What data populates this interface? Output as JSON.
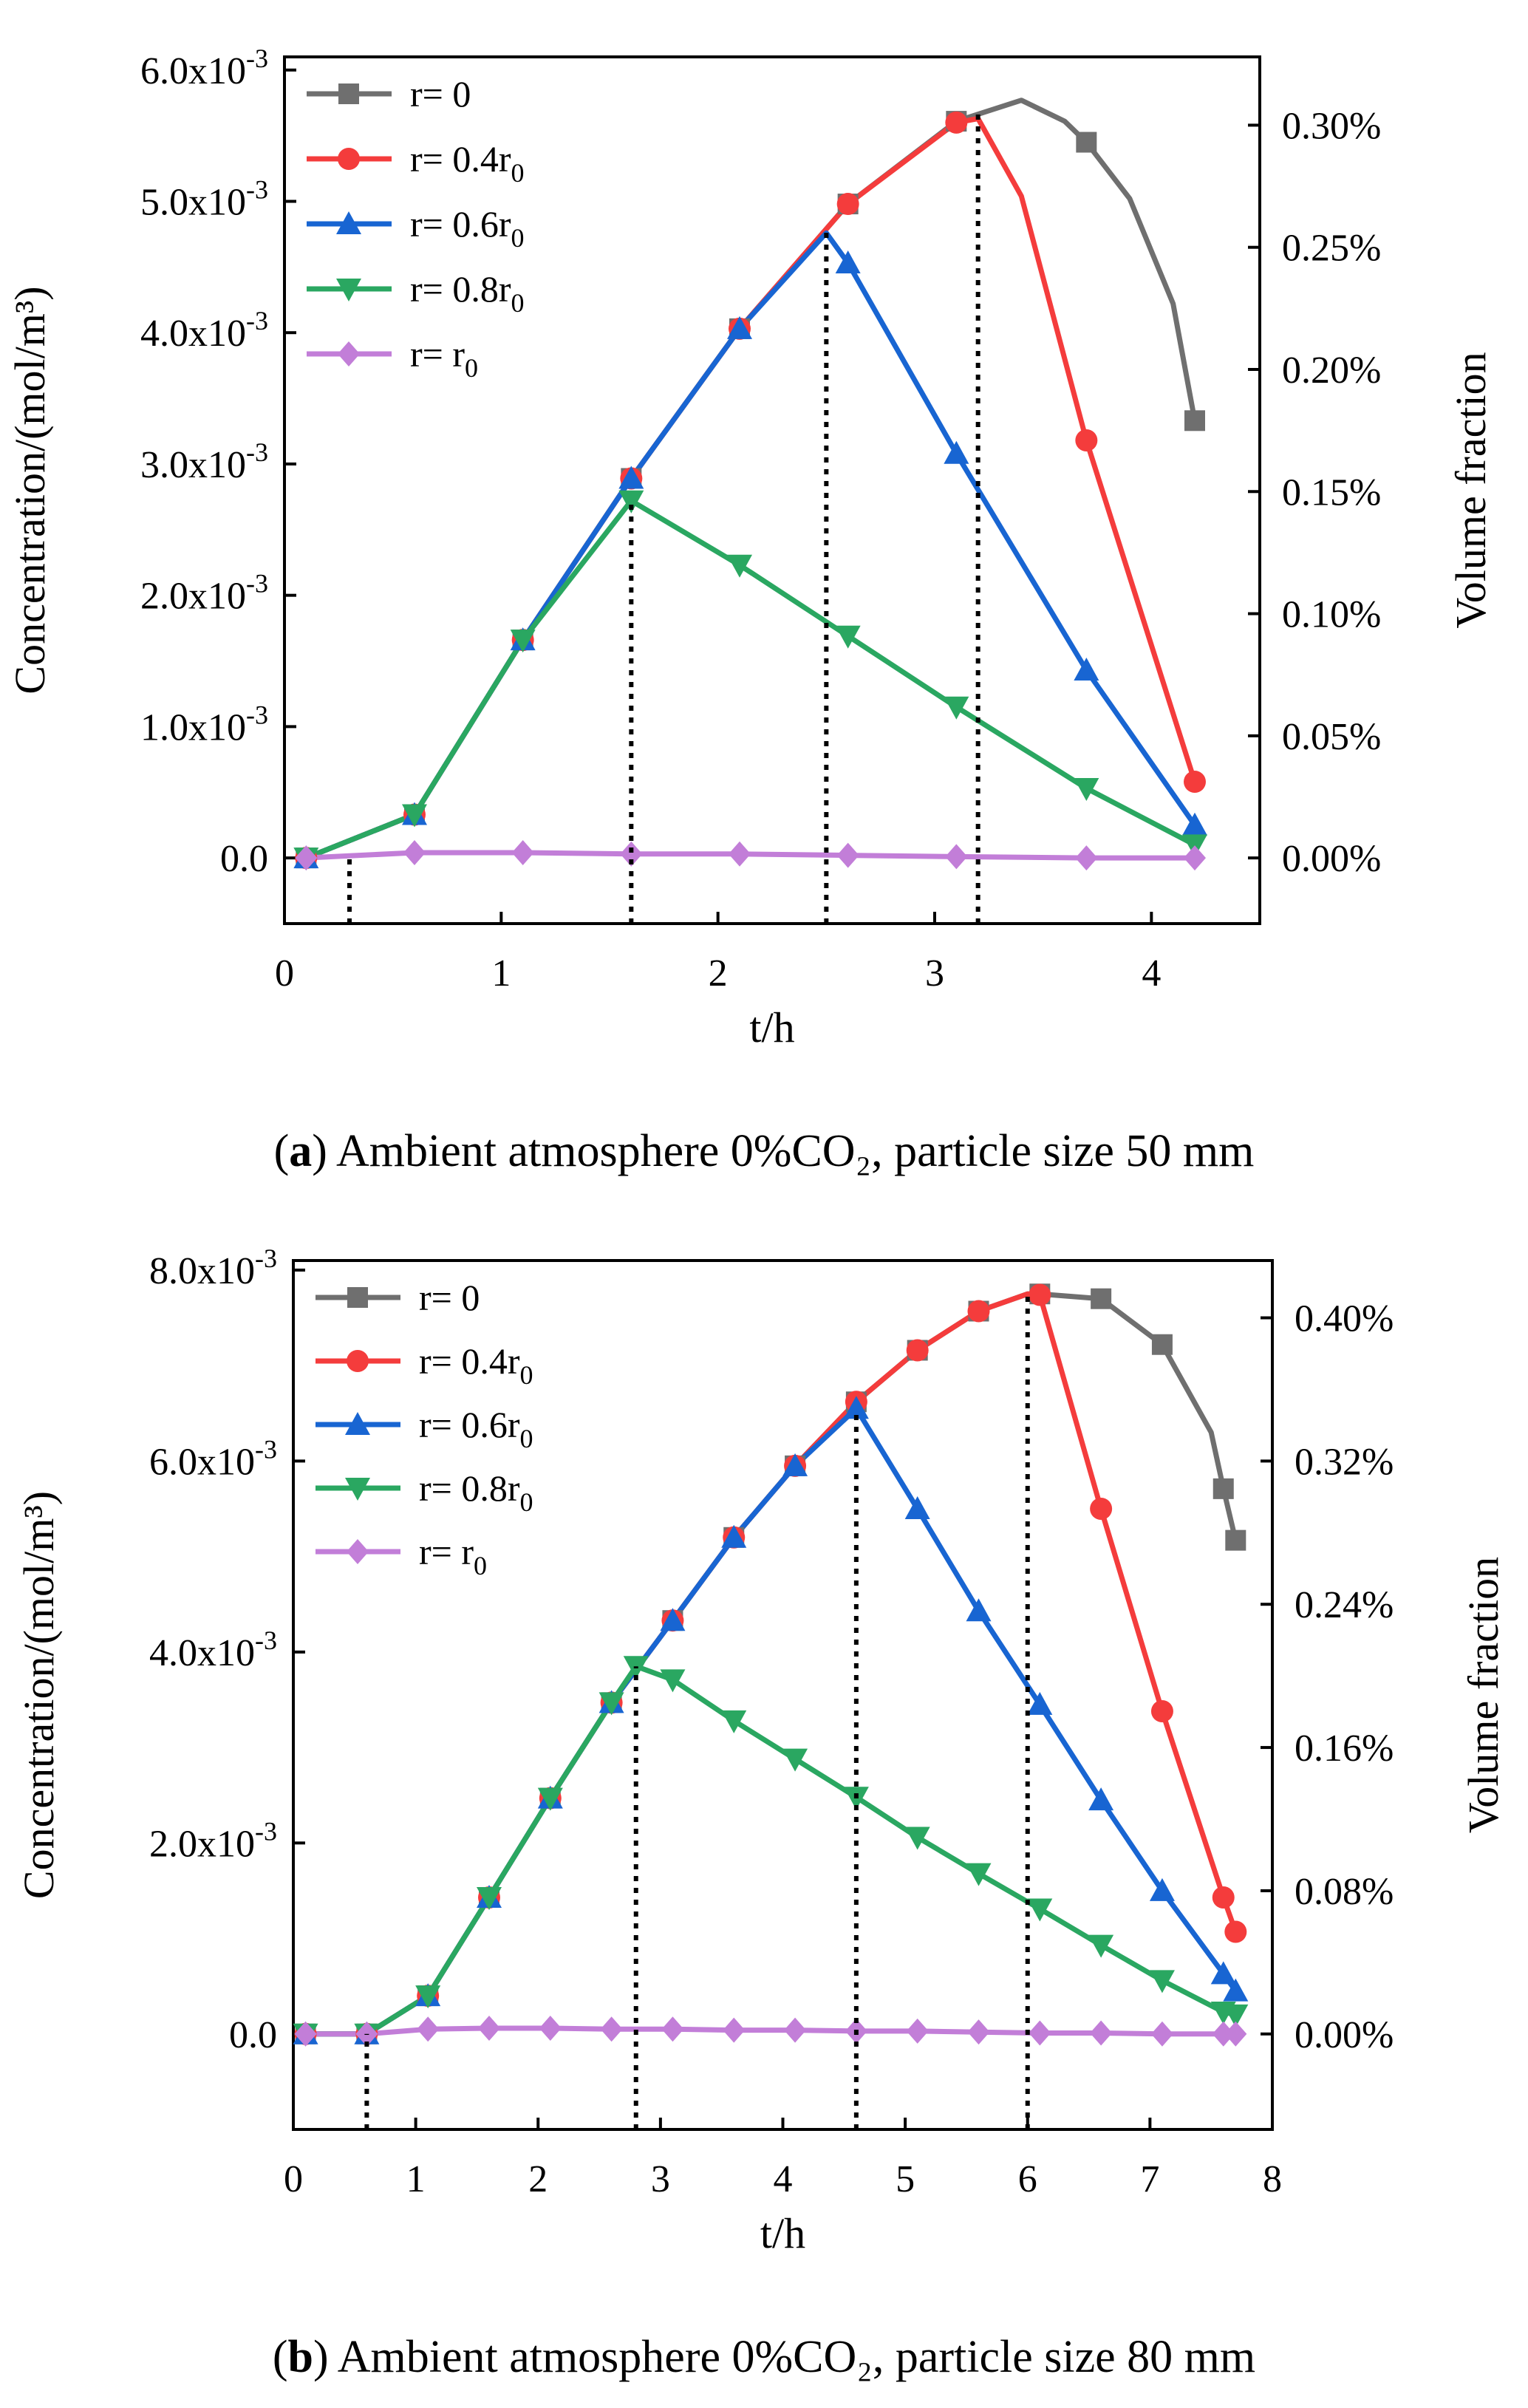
{
  "chart_data": [
    {
      "type": "line",
      "panel_label": "a",
      "caption": "Ambient atmosphere 0%CO₂, particle size 50 mm",
      "xlabel": "t/h",
      "ylabel": "Concentration/(mol/m³)",
      "ylabel_right": "Volume fraction",
      "xlim": [
        0,
        4.5
      ],
      "ylim": [
        -0.0005,
        0.0061
      ],
      "xticks": [
        0,
        1,
        2,
        3,
        4
      ],
      "xtick_labels": [
        "0",
        "1",
        "2",
        "3",
        "4"
      ],
      "yticks": [
        0,
        0.001,
        0.002,
        0.003,
        0.004,
        0.005,
        0.006
      ],
      "ytick_labels": [
        "0.0",
        "1.0x10-3",
        "2.0x10-3",
        "3.0x10-3",
        "4.0x10-3",
        "5.0x10-3",
        "6.0x10-3"
      ],
      "y2ticks": [
        0,
        0.00093,
        0.00186,
        0.00279,
        0.00372,
        0.00465,
        0.00558
      ],
      "y2tick_labels": [
        "0.00%",
        "0.05%",
        "0.10%",
        "0.15%",
        "0.20%",
        "0.25%",
        "0.30%"
      ],
      "vlines": [
        {
          "x": 0.3,
          "y": 0.0
        },
        {
          "x": 1.6,
          "y": 0.00272
        },
        {
          "x": 2.5,
          "y": 0.00477
        },
        {
          "x": 3.2,
          "y": 0.00569
        }
      ],
      "legend_position": "top-left",
      "series": [
        {
          "name": "r= 0",
          "sub": "",
          "color": "#6f6f6f",
          "marker": "square",
          "x": [
            0.1,
            0.6,
            1.1,
            1.6,
            2.1,
            2.6,
            3.1,
            3.4,
            3.6,
            3.7,
            3.9,
            4.1,
            4.2
          ],
          "y": [
            0.0,
            0.00033,
            0.00166,
            0.00289,
            0.00403,
            0.00498,
            0.00561,
            0.00577,
            0.00561,
            0.00545,
            0.00502,
            0.00422,
            0.00333
          ],
          "marker_idx": [
            0,
            1,
            2,
            3,
            4,
            5,
            6,
            9,
            12
          ]
        },
        {
          "name": "r= 0.4r",
          "sub": "0",
          "color": "#f43c3c",
          "marker": "circle",
          "x": [
            0.1,
            0.6,
            1.1,
            1.6,
            2.1,
            2.6,
            3.1,
            3.2,
            3.4,
            3.7,
            4.2
          ],
          "y": [
            0.0,
            0.00033,
            0.00166,
            0.00289,
            0.00403,
            0.00498,
            0.0056,
            0.00563,
            0.00504,
            0.00318,
            0.00058
          ],
          "marker_idx": [
            0,
            1,
            2,
            3,
            4,
            5,
            6,
            9,
            10
          ]
        },
        {
          "name": "r= 0.6r",
          "sub": "0",
          "color": "#1865d2",
          "marker": "triangle-up",
          "x": [
            0.1,
            0.6,
            1.1,
            1.6,
            2.1,
            2.5,
            2.6,
            3.1,
            3.7,
            4.2
          ],
          "y": [
            0.0,
            0.00033,
            0.00166,
            0.00289,
            0.00403,
            0.00476,
            0.00453,
            0.00308,
            0.00143,
            0.00025
          ],
          "marker_idx": [
            0,
            1,
            2,
            3,
            4,
            6,
            7,
            8,
            9
          ]
        },
        {
          "name": "r= 0.8r",
          "sub": "0",
          "color": "#2aa761",
          "marker": "triangle-down",
          "x": [
            0.1,
            0.6,
            1.1,
            1.6,
            2.1,
            2.6,
            3.1,
            3.7,
            4.2
          ],
          "y": [
            0.0,
            0.00033,
            0.00166,
            0.00272,
            0.00223,
            0.00169,
            0.00115,
            0.00053,
            0.0001
          ],
          "marker_idx": [
            0,
            1,
            2,
            3,
            4,
            5,
            6,
            7,
            8
          ]
        },
        {
          "name": "r= r",
          "sub": "0",
          "color": "#c27ed8",
          "marker": "diamond",
          "x": [
            0.1,
            0.6,
            1.1,
            1.6,
            2.1,
            2.6,
            3.1,
            3.7,
            4.2
          ],
          "y": [
            0.0,
            4e-05,
            4e-05,
            3e-05,
            3e-05,
            2e-05,
            1e-05,
            0.0,
            0.0
          ],
          "marker_idx": [
            0,
            1,
            2,
            3,
            4,
            5,
            6,
            7,
            8
          ]
        }
      ]
    },
    {
      "type": "line",
      "panel_label": "b",
      "caption": "Ambient atmosphere 0%CO₂, particle size 80 mm",
      "xlabel": "t/h",
      "ylabel": "Concentration/(mol/m³)",
      "ylabel_right": "Volume fraction",
      "xlim": [
        0,
        8
      ],
      "ylim": [
        -0.001,
        0.0081
      ],
      "xticks": [
        0,
        1,
        2,
        3,
        4,
        5,
        6,
        7,
        8
      ],
      "xtick_labels": [
        "0",
        "1",
        "2",
        "3",
        "4",
        "5",
        "6",
        "7",
        "8"
      ],
      "yticks": [
        0,
        0.002,
        0.004,
        0.006,
        0.008
      ],
      "ytick_labels": [
        "0.0",
        "2.0x10-3",
        "4.0x10-3",
        "6.0x10-3",
        "8.0x10-3"
      ],
      "y2ticks": [
        0,
        0.0015,
        0.003,
        0.0045,
        0.006,
        0.0075
      ],
      "y2tick_labels": [
        "0.00%",
        "0.08%",
        "0.16%",
        "0.24%",
        "0.32%",
        "0.40%"
      ],
      "vlines": [
        {
          "x": 0.6,
          "y": 0.0
        },
        {
          "x": 2.8,
          "y": 0.00385
        },
        {
          "x": 4.6,
          "y": 0.00655
        },
        {
          "x": 6.0,
          "y": 0.00775
        }
      ],
      "legend_position": "top-left",
      "series": [
        {
          "name": "r= 0",
          "sub": "",
          "color": "#6f6f6f",
          "marker": "square",
          "x": [
            0.1,
            0.6,
            1.1,
            1.6,
            2.1,
            2.6,
            3.1,
            3.6,
            4.1,
            4.6,
            5.1,
            5.6,
            6.0,
            6.1,
            6.6,
            7.1,
            7.5,
            7.6,
            7.7
          ],
          "y": [
            0.0,
            0.0,
            0.0004,
            0.00143,
            0.00247,
            0.00347,
            0.00433,
            0.0052,
            0.00595,
            0.00662,
            0.00716,
            0.00757,
            0.00775,
            0.00775,
            0.0077,
            0.00722,
            0.0063,
            0.00571,
            0.00517
          ],
          "marker_idx": [
            0,
            1,
            2,
            3,
            4,
            5,
            6,
            7,
            8,
            9,
            10,
            11,
            13,
            14,
            15,
            17,
            18
          ]
        },
        {
          "name": "r= 0.4r",
          "sub": "0",
          "color": "#f43c3c",
          "marker": "circle",
          "x": [
            0.1,
            0.6,
            1.1,
            1.6,
            2.1,
            2.6,
            3.1,
            3.6,
            4.1,
            4.6,
            5.1,
            5.6,
            6.0,
            6.1,
            6.6,
            7.1,
            7.6,
            7.7
          ],
          "y": [
            0.0,
            0.0,
            0.0004,
            0.00143,
            0.00247,
            0.00347,
            0.00433,
            0.0052,
            0.00595,
            0.00662,
            0.00716,
            0.00757,
            0.00775,
            0.00774,
            0.0055,
            0.00338,
            0.00143,
            0.00107
          ],
          "marker_idx": [
            0,
            1,
            2,
            3,
            4,
            5,
            6,
            7,
            8,
            9,
            10,
            11,
            13,
            14,
            15,
            16,
            17
          ]
        },
        {
          "name": "r= 0.6r",
          "sub": "0",
          "color": "#1865d2",
          "marker": "triangle-up",
          "x": [
            0.1,
            0.6,
            1.1,
            1.6,
            2.1,
            2.6,
            3.1,
            3.6,
            4.1,
            4.6,
            5.1,
            5.6,
            6.1,
            6.6,
            7.1,
            7.6,
            7.7
          ],
          "y": [
            0.0,
            0.0,
            0.0004,
            0.00143,
            0.00247,
            0.00347,
            0.00433,
            0.0052,
            0.00595,
            0.00655,
            0.0055,
            0.00443,
            0.00345,
            0.00245,
            0.0015,
            0.00063,
            0.00045
          ],
          "marker_idx": [
            0,
            1,
            2,
            3,
            4,
            5,
            6,
            7,
            8,
            9,
            10,
            11,
            12,
            13,
            14,
            15,
            16
          ]
        },
        {
          "name": "r= 0.8r",
          "sub": "0",
          "color": "#2aa761",
          "marker": "triangle-down",
          "x": [
            0.1,
            0.6,
            1.1,
            1.6,
            2.1,
            2.6,
            2.8,
            3.1,
            3.6,
            4.1,
            4.6,
            5.1,
            5.6,
            6.1,
            6.6,
            7.1,
            7.6,
            7.7
          ],
          "y": [
            0.0,
            0.0,
            0.0004,
            0.00143,
            0.00247,
            0.00347,
            0.00385,
            0.00371,
            0.00328,
            0.00288,
            0.00248,
            0.00206,
            0.00168,
            0.00131,
            0.00093,
            0.00056,
            0.00023,
            0.0002
          ],
          "marker_idx": [
            0,
            1,
            2,
            3,
            4,
            5,
            6,
            7,
            8,
            9,
            10,
            11,
            12,
            13,
            14,
            15,
            16,
            17
          ]
        },
        {
          "name": "r= r",
          "sub": "0",
          "color": "#c27ed8",
          "marker": "diamond",
          "x": [
            0.1,
            0.6,
            1.1,
            1.6,
            2.1,
            2.6,
            3.1,
            3.6,
            4.1,
            4.6,
            5.1,
            5.6,
            6.1,
            6.6,
            7.1,
            7.6,
            7.7
          ],
          "y": [
            0.0,
            0.0,
            5e-05,
            6e-05,
            6e-05,
            5e-05,
            5e-05,
            4e-05,
            4e-05,
            3e-05,
            3e-05,
            2e-05,
            1e-05,
            1e-05,
            0.0,
            0.0,
            0.0
          ],
          "marker_idx": [
            0,
            1,
            2,
            3,
            4,
            5,
            6,
            7,
            8,
            9,
            10,
            11,
            12,
            13,
            14,
            15,
            16
          ]
        }
      ]
    }
  ]
}
